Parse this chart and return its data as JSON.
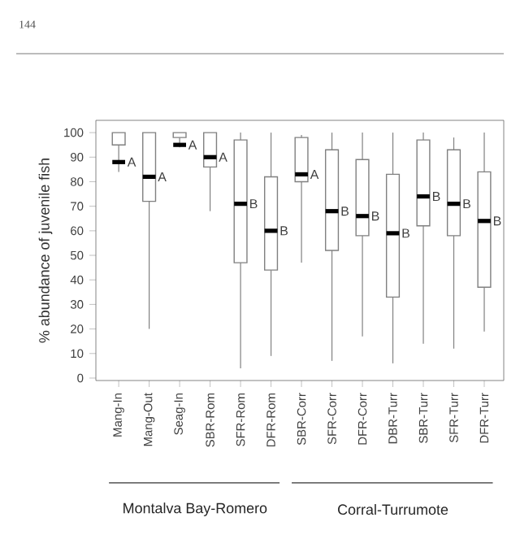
{
  "chart_data": {
    "type": "box",
    "ylabel": "% abundance of juvenile fish",
    "categories": [
      "Mang-In",
      "Mang-Out",
      "Seag-In",
      "SBR-Rom",
      "SFR-Rom",
      "DFR-Rom",
      "SBR-Corr",
      "SFR-Corr",
      "DFR-Corr",
      "DBR-Turr",
      "SBR-Turr",
      "SFR-Turr",
      "DFR-Turr"
    ],
    "boxes": [
      {
        "low": 84,
        "q1": 95,
        "median": 88,
        "q3": 100,
        "high": 100
      },
      {
        "low": 20,
        "q1": 72,
        "median": 82,
        "q3": 100,
        "high": 100
      },
      {
        "low": 94,
        "q1": 98,
        "median": 95,
        "q3": 100,
        "high": 100
      },
      {
        "low": 68,
        "q1": 86,
        "median": 90,
        "q3": 100,
        "high": 100
      },
      {
        "low": 4,
        "q1": 47,
        "median": 71,
        "q3": 97,
        "high": 100
      },
      {
        "low": 9,
        "q1": 44,
        "median": 60,
        "q3": 82,
        "high": 100
      },
      {
        "low": 47,
        "q1": 80,
        "median": 83,
        "q3": 98,
        "high": 99
      },
      {
        "low": 7,
        "q1": 52,
        "median": 68,
        "q3": 93,
        "high": 100
      },
      {
        "low": 17,
        "q1": 58,
        "median": 66,
        "q3": 89,
        "high": 100
      },
      {
        "low": 6,
        "q1": 33,
        "median": 59,
        "q3": 83,
        "high": 100
      },
      {
        "low": 14,
        "q1": 62,
        "median": 74,
        "q3": 97,
        "high": 100
      },
      {
        "low": 12,
        "q1": 58,
        "median": 71,
        "q3": 93,
        "high": 98
      },
      {
        "low": 19,
        "q1": 37,
        "median": 64,
        "q3": 84,
        "high": 100
      }
    ],
    "color": "#808080",
    "ylim": [
      -1,
      105
    ],
    "yticks": [
      0,
      10,
      20,
      30,
      40,
      50,
      60,
      70,
      80,
      90,
      100
    ],
    "annotations": [
      "A",
      "A",
      "A",
      "A",
      "B",
      "B",
      "A",
      "B",
      "B",
      "B",
      "B",
      "B",
      "B",
      "Montalva Bay-Romero",
      "Corral-Turrumote",
      "144"
    ]
  }
}
